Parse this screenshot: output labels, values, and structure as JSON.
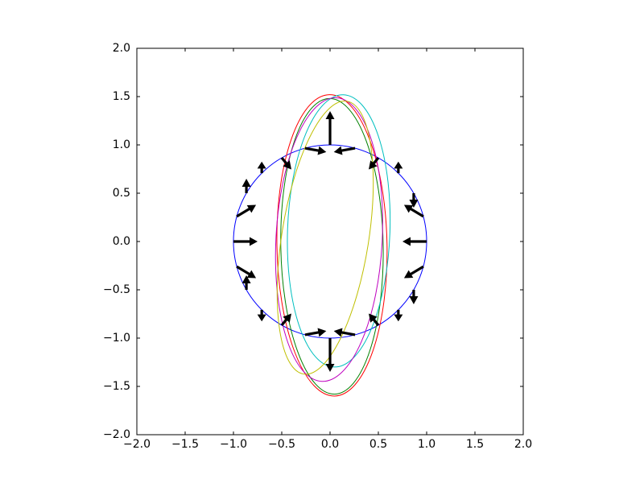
{
  "chart_data": {
    "type": "quiver",
    "xlim": [
      -2,
      2
    ],
    "ylim": [
      -2,
      2
    ],
    "xticks": [
      {
        "value": -2,
        "label": "−2.0"
      },
      {
        "value": -1.5,
        "label": "−1.5"
      },
      {
        "value": -1,
        "label": "−1.0"
      },
      {
        "value": -0.5,
        "label": "−0.5"
      },
      {
        "value": 0,
        "label": "0.0"
      },
      {
        "value": 0.5,
        "label": "0.5"
      },
      {
        "value": 1,
        "label": "1.0"
      },
      {
        "value": 1.5,
        "label": "1.5"
      },
      {
        "value": 2,
        "label": "2.0"
      }
    ],
    "yticks": [
      {
        "value": -2,
        "label": "−2.0"
      },
      {
        "value": -1.5,
        "label": "−1.5"
      },
      {
        "value": -1,
        "label": "−1.0"
      },
      {
        "value": -0.5,
        "label": "−0.5"
      },
      {
        "value": 0,
        "label": "0.0"
      },
      {
        "value": 0.5,
        "label": "0.5"
      },
      {
        "value": 1,
        "label": "1.0"
      },
      {
        "value": 1.5,
        "label": "1.5"
      },
      {
        "value": 2,
        "label": "2.0"
      }
    ],
    "ellipses": [
      {
        "color": "#0000ff",
        "cx": 0,
        "cy": 0,
        "rx": 1,
        "ry": 1,
        "angle": 0
      },
      {
        "color": "#008000",
        "cx": 0.02,
        "cy": -0.05,
        "rx": 0.53,
        "ry": 1.53,
        "angle": 1
      },
      {
        "color": "#ff0000",
        "cx": 0.02,
        "cy": -0.04,
        "rx": 0.57,
        "ry": 1.56,
        "angle": 1
      },
      {
        "color": "#00bfbf",
        "cx": 0.09,
        "cy": 0.11,
        "rx": 0.53,
        "ry": 1.41,
        "angle": -2
      },
      {
        "color": "#bf00bf",
        "cx": -0.01,
        "cy": 0.02,
        "rx": 0.55,
        "ry": 1.47,
        "angle": -3
      },
      {
        "color": "#bfbf00",
        "cx": -0.05,
        "cy": 0.04,
        "rx": 0.45,
        "ry": 1.43,
        "angle": -9
      }
    ],
    "arrows": {
      "color": "#000000",
      "x": [
        1,
        0.966,
        0.866,
        0.707,
        0.5,
        0.259,
        0,
        -0.259,
        -0.5,
        -0.707,
        -0.866,
        -0.966,
        -1,
        -0.966,
        -0.866,
        -0.707,
        -0.5,
        -0.259,
        0,
        0.259,
        0.5,
        0.707,
        0.866,
        0.966
      ],
      "y": [
        0,
        0.259,
        0.5,
        0.707,
        0.866,
        0.966,
        1,
        0.966,
        0.866,
        0.707,
        0.5,
        0.259,
        0,
        -0.259,
        -0.5,
        -0.707,
        -0.866,
        -0.966,
        -1,
        -0.966,
        -0.866,
        -0.707,
        -0.5,
        -0.259
      ],
      "u": [
        -0.25,
        -0.2,
        0,
        0,
        -0.1,
        -0.22,
        0,
        0.22,
        0.1,
        0,
        0,
        0.2,
        0.25,
        0.2,
        0,
        0,
        0.1,
        0.22,
        0,
        -0.22,
        -0.1,
        0,
        0,
        -0.2
      ],
      "v": [
        0,
        0.12,
        -0.15,
        0.12,
        -0.12,
        -0.04,
        0.35,
        -0.04,
        -0.12,
        0.12,
        0.15,
        0.12,
        0,
        -0.12,
        0.15,
        -0.12,
        0.12,
        0.04,
        -0.35,
        0.04,
        0.12,
        -0.12,
        -0.15,
        -0.12
      ]
    }
  }
}
